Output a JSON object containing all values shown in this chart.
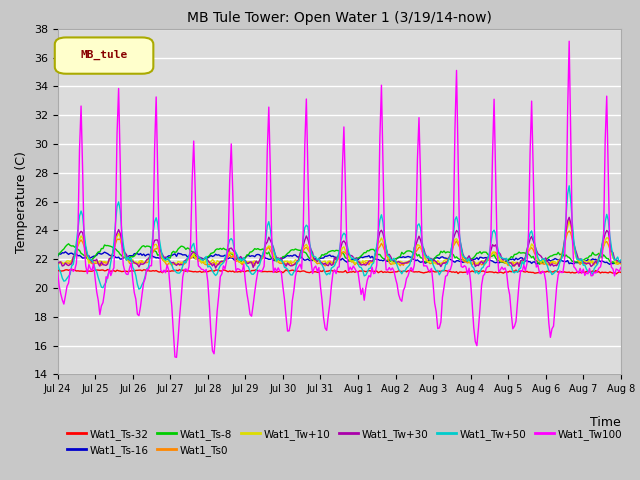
{
  "title": "MB Tule Tower: Open Water 1 (3/19/14-now)",
  "xlabel": "Time",
  "ylabel": "Temperature (C)",
  "ylim": [
    14,
    38
  ],
  "yticks": [
    14,
    16,
    18,
    20,
    22,
    24,
    26,
    28,
    30,
    32,
    34,
    36,
    38
  ],
  "x_tick_labels": [
    "Jul 24",
    "Jul 25",
    "Jul 26",
    "Jul 27",
    "Jul 28",
    "Jul 29",
    "Jul 30",
    "Jul 31",
    "Aug 1",
    "Aug 2",
    "Aug 3",
    "Aug 4",
    "Aug 5",
    "Aug 6",
    "Aug 7",
    "Aug 8"
  ],
  "series_colors": {
    "Wat1_Ts-32": "#ff0000",
    "Wat1_Ts-16": "#0000cc",
    "Wat1_Ts-8": "#00cc00",
    "Wat1_Ts0": "#ff8800",
    "Wat1_Tw+10": "#dddd00",
    "Wat1_Tw+30": "#aa00aa",
    "Wat1_Tw+50": "#00cccc",
    "Wat1_Tw100": "#ff00ff"
  },
  "legend_label": "MB_tule",
  "background_color": "#dcdcdc",
  "grid_color": "#ffffff"
}
